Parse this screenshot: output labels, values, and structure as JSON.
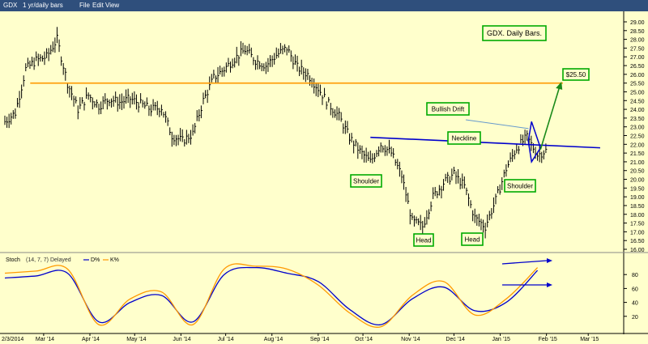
{
  "toolbar": {
    "symbol": "GDX",
    "period": "1 yr/daily bars",
    "menu": [
      "File",
      "Edit",
      "View"
    ]
  },
  "chart_data": [
    {
      "type": "ohlc",
      "title": "GDX. Daily Bars.",
      "x_axis": {
        "start_label": "2/3/2014",
        "ticks": [
          "Mar '14",
          "Apr '14",
          "May '14",
          "Jun '14",
          "Jul '14",
          "Aug '14",
          "Sep '14",
          "Oct '14",
          "Nov '14",
          "Dec '14",
          "Jan '15",
          "Feb '15",
          "Mar '15"
        ]
      },
      "ylim": [
        16.0,
        29.0
      ],
      "y_ticks": [
        "16.00",
        "16.50",
        "17.00",
        "17.50",
        "18.00",
        "18.50",
        "19.00",
        "19.50",
        "20.00",
        "20.50",
        "21.00",
        "21.50",
        "22.00",
        "22.50",
        "23.00",
        "23.50",
        "24.00",
        "24.50",
        "25.00",
        "25.50",
        "26.00",
        "26.50",
        "27.00",
        "27.50",
        "28.00",
        "28.50",
        "29.00"
      ],
      "series": [
        {
          "key": "price",
          "x": [
            "2014-02-03",
            "2014-02-10",
            "2014-02-17",
            "2014-02-24",
            "2014-03-03",
            "2014-03-10",
            "2014-03-17",
            "2014-03-24",
            "2014-03-31",
            "2014-04-07",
            "2014-04-14",
            "2014-04-21",
            "2014-04-28",
            "2014-05-05",
            "2014-05-12",
            "2014-05-19",
            "2014-05-26",
            "2014-06-02",
            "2014-06-09",
            "2014-06-16",
            "2014-06-23",
            "2014-06-30",
            "2014-07-07",
            "2014-07-14",
            "2014-07-21",
            "2014-07-28",
            "2014-08-04",
            "2014-08-11",
            "2014-08-18",
            "2014-08-25",
            "2014-09-01",
            "2014-09-08",
            "2014-09-15",
            "2014-09-22",
            "2014-09-29",
            "2014-10-06",
            "2014-10-13",
            "2014-10-20",
            "2014-10-27",
            "2014-11-03",
            "2014-11-10",
            "2014-11-17",
            "2014-11-24",
            "2014-12-01",
            "2014-12-08",
            "2014-12-15",
            "2014-12-22",
            "2014-12-29",
            "2015-01-05",
            "2015-01-12",
            "2015-01-19",
            "2015-01-26",
            "2015-02-02"
          ],
          "y": [
            23.3,
            23.8,
            26.3,
            26.8,
            27.0,
            28.0,
            25.5,
            24.0,
            24.8,
            24.2,
            24.6,
            24.4,
            24.6,
            24.3,
            24.0,
            24.1,
            22.5,
            22.2,
            22.6,
            24.5,
            25.8,
            26.3,
            26.9,
            27.4,
            26.8,
            26.5,
            27.1,
            27.5,
            26.4,
            26.0,
            25.2,
            24.3,
            23.6,
            22.4,
            21.6,
            21.0,
            22.0,
            21.5,
            20.2,
            17.6,
            17.3,
            19.0,
            19.8,
            20.3,
            19.6,
            17.8,
            17.3,
            18.8,
            20.6,
            21.8,
            22.4,
            21.4,
            21.7
          ]
        }
      ]
    },
    {
      "type": "line",
      "title": "Stoch",
      "indicator_params": "(14, 7, 7) Delayed",
      "legend": [
        "D%",
        "K%"
      ],
      "ylim": [
        0,
        100
      ],
      "y_ticks": [
        "20",
        "40",
        "60",
        "80"
      ],
      "series": [
        {
          "name": "D%",
          "x": [
            "2014-02-03",
            "2014-02-24",
            "2014-03-17",
            "2014-04-07",
            "2014-04-28",
            "2014-05-19",
            "2014-06-09",
            "2014-06-30",
            "2014-07-21",
            "2014-08-11",
            "2014-09-01",
            "2014-09-22",
            "2014-10-13",
            "2014-11-03",
            "2014-11-24",
            "2014-12-15",
            "2015-01-05",
            "2015-01-26"
          ],
          "y": [
            75,
            78,
            82,
            12,
            40,
            50,
            12,
            80,
            90,
            82,
            70,
            30,
            8,
            45,
            62,
            28,
            40,
            86
          ]
        },
        {
          "name": "K%",
          "x": [
            "2014-02-03",
            "2014-02-24",
            "2014-03-17",
            "2014-04-07",
            "2014-04-28",
            "2014-05-19",
            "2014-06-09",
            "2014-06-30",
            "2014-07-21",
            "2014-08-11",
            "2014-09-01",
            "2014-09-22",
            "2014-10-13",
            "2014-11-03",
            "2014-11-24",
            "2014-12-15",
            "2015-01-05",
            "2015-01-26"
          ],
          "y": [
            82,
            85,
            88,
            8,
            45,
            55,
            8,
            88,
            92,
            88,
            65,
            25,
            5,
            50,
            70,
            22,
            45,
            90
          ]
        }
      ]
    }
  ],
  "annotations": {
    "title": "GDX. Daily Bars.",
    "target": "$25.50",
    "bullish_drift": "Bullish Drift",
    "neckline": "Neckline",
    "shoulder_left": "Shoulder",
    "shoulder_right": "Shoulder",
    "head_left": "Head",
    "head_right": "Head"
  },
  "levels": {
    "resistance": 25.5,
    "neckline_start": [
      "2014-10-06",
      22.4
    ],
    "neckline_end": [
      "2015-03-09",
      21.8
    ],
    "target_value": 25.5
  },
  "colors": {
    "background": "#ffffcc",
    "toolbar": "#2f4f7c",
    "price_bars": "#000000",
    "resistance": "#ff9900",
    "neckline": "#0000cc",
    "target_arrow": "#1a8a1a",
    "label_border": "#00aa00",
    "stoch_d": "#0000cc",
    "stoch_k": "#ff9900"
  }
}
